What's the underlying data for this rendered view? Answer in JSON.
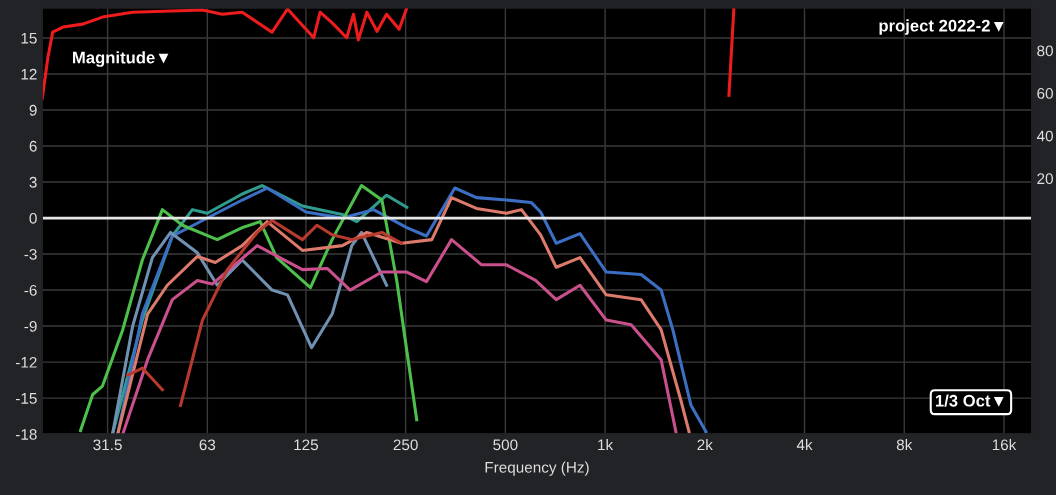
{
  "chart_data": {
    "type": "line",
    "xlabel": "Frequency (Hz)",
    "log": "x",
    "xlim": [
      20,
      19400
    ],
    "xticks": [
      31.5,
      63,
      125,
      250,
      500,
      {
        "value": 1000,
        "label": "1k"
      },
      {
        "value": 2000,
        "label": "2k"
      },
      {
        "value": 4000,
        "label": "4k"
      },
      {
        "value": 8000,
        "label": "8k"
      },
      {
        "value": 16000,
        "label": "16k"
      }
    ],
    "ylim": [
      -18,
      17.5
    ],
    "yticks": [
      {
        "value": -18,
        "label": "-18"
      },
      {
        "value": -15,
        "label": "-15"
      },
      {
        "value": -12,
        "label": "-12"
      },
      {
        "value": -9,
        "label": "-9"
      },
      {
        "value": -6,
        "label": "-6"
      },
      {
        "value": -3,
        "label": "-3"
      },
      0,
      3,
      6,
      9,
      12,
      15
    ],
    "y2lim": [
      -100,
      100
    ],
    "y2ticks": [
      20,
      40,
      60,
      80
    ],
    "grid": true,
    "legend": false,
    "marker": "none",
    "line_style": "solid",
    "ref_lines": [
      {
        "axis": "y",
        "value": 0,
        "color": "#e6e6e6"
      }
    ],
    "annotations": [
      "Magnitude▼",
      "project 2022-2▼",
      "1/3 Oct▼"
    ],
    "series": [
      {
        "color": "#ee1c1c",
        "axis": "y2",
        "x": [
          20,
          20.8,
          21.5,
          23.1,
          26.5,
          30.4,
          37.5,
          60.9,
          69.9,
          80.3,
          98.8,
          110,
          132,
          138,
          150,
          166,
          174,
          180,
          191,
          205,
          219,
          239,
          252,
          280,
          2365,
          2448
        ],
        "values": [
          57.6,
          76.7,
          88.6,
          91,
          92.4,
          95.7,
          98,
          99,
          97,
          98,
          88.6,
          99.5,
          86,
          98,
          93,
          86,
          97,
          85,
          98,
          89,
          97,
          90,
          100,
          null,
          59,
          100
        ]
      },
      {
        "color": "#2f9c8e",
        "x": [
          32.6,
          40.1,
          49.4,
          56.8,
          63,
          80.3,
          92.2,
          122,
          161,
          178,
          219,
          252
        ],
        "values": [
          -18,
          -8.5,
          -1.5,
          0.7,
          0.4,
          2,
          2.7,
          1,
          0.3,
          -0.3,
          1.9,
          0.9
        ]
      },
      {
        "color": "#3b6fc4",
        "x": [
          33.8,
          40.1,
          49.4,
          63,
          80.3,
          95.5,
          125,
          161,
          200,
          252,
          289,
          352,
          409,
          504,
          598,
          639,
          712,
          840,
          1008,
          1284,
          1476,
          1601,
          1817,
          2016
        ],
        "values": [
          -18,
          -8,
          -1.5,
          0,
          1.5,
          2.5,
          0.5,
          0,
          0.7,
          -0.8,
          -1.5,
          2.5,
          1.7,
          1.5,
          1.3,
          0.5,
          -2.1,
          -1.3,
          -4.5,
          -4.7,
          -6,
          -9.3,
          -15.6,
          -17.8
        ]
      },
      {
        "color": "#4cc04a",
        "x": [
          26.1,
          28.4,
          30.4,
          35,
          40.1,
          46.1,
          53,
          67.5,
          80.3,
          91,
          102,
          129,
          150,
          184,
          212,
          235,
          270
        ],
        "values": [
          -17.7,
          -14.7,
          -14,
          -9.3,
          -3.5,
          0.7,
          -0.6,
          -1.8,
          -0.8,
          -0.3,
          -3.3,
          -5.8,
          -1.8,
          2.7,
          1.5,
          -5.2,
          -16.8
        ]
      },
      {
        "color": "#7191b3",
        "x": [
          32.6,
          37.5,
          43,
          48.8,
          58.8,
          67.5,
          80.3,
          98.8,
          110,
          130,
          150,
          172,
          184,
          219
        ],
        "values": [
          -18,
          -9,
          -3.3,
          -1.2,
          -2.9,
          -5.6,
          -3.5,
          -6,
          -6.4,
          -10.8,
          -8,
          -2.3,
          -1.2,
          -5.6
        ]
      },
      {
        "color": "#dc7a6b",
        "x": [
          33.8,
          41.6,
          47.7,
          58.8,
          66.6,
          80.3,
          95.5,
          122,
          161,
          191,
          243,
          300,
          344,
          409,
          504,
          559,
          639,
          712,
          840,
          1008,
          1284,
          1476,
          1694,
          1792
        ],
        "values": [
          -18,
          -8,
          -5.6,
          -3.2,
          -3.7,
          -2.3,
          -0.3,
          -2.7,
          -2.3,
          -1.2,
          -2.1,
          -1.8,
          1.7,
          0.8,
          0.4,
          0.7,
          -1.4,
          -4.1,
          -3.3,
          -6.4,
          -6.8,
          -9.3,
          -15.2,
          -17.8
        ]
      },
      {
        "color": "#c9508c",
        "x": [
          35,
          41.6,
          49.4,
          58.8,
          65.2,
          89.1,
          122,
          145,
          170,
          212,
          252,
          289,
          344,
          424,
          504,
          617,
          712,
          840,
          1008,
          1199,
          1476,
          1636
        ],
        "values": [
          -18,
          -11.8,
          -6.8,
          -5.2,
          -5.5,
          -2.3,
          -4.3,
          -4.2,
          -6,
          -4.5,
          -4.5,
          -5.3,
          -1.8,
          -3.9,
          -3.9,
          -5.2,
          -6.8,
          -5.6,
          -8.5,
          -8.9,
          -11.8,
          -17.8
        ]
      },
      {
        "color": "#b83a2e",
        "x": [
          36.2,
          40.1,
          46.1,
          49.4,
          52.3,
          60.9,
          72.4,
          89.1,
          98.8,
          122,
          135,
          150,
          172,
          212,
          243
        ],
        "values": [
          -13.1,
          -12.5,
          -14.3,
          null,
          -15.6,
          -8.5,
          -4.3,
          -1.2,
          -0.2,
          -1.8,
          -0.6,
          -1.4,
          -1.8,
          -1.2,
          -2.1
        ]
      }
    ]
  }
}
